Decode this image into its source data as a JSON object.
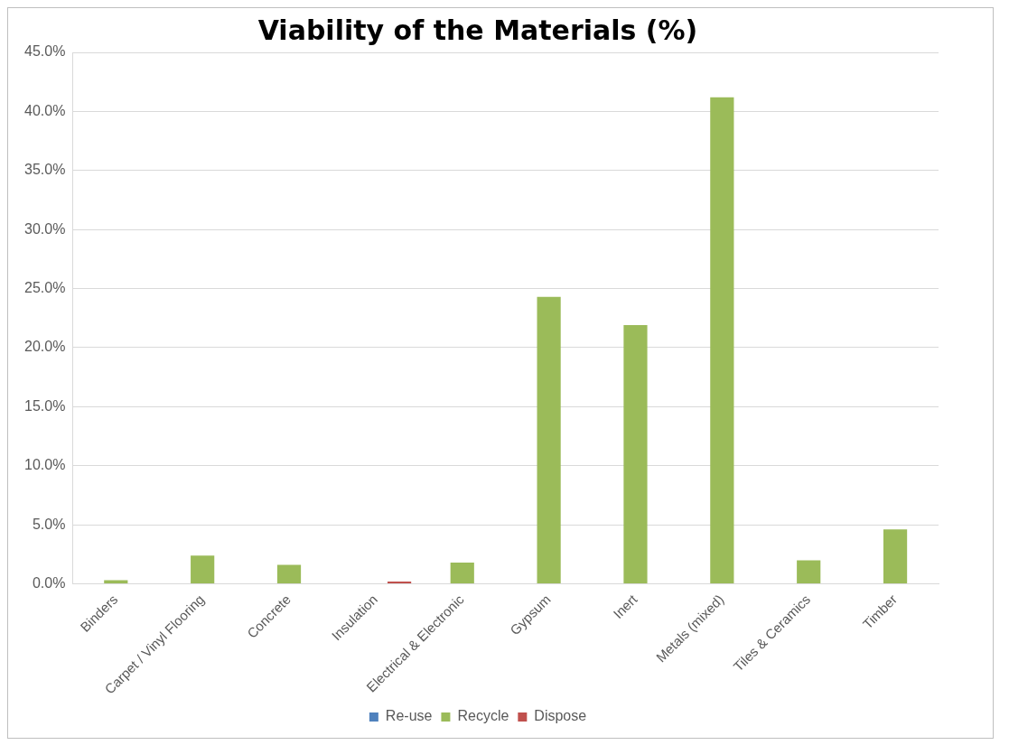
{
  "chart_data": {
    "type": "bar",
    "title": "Viability of the Materials (%)",
    "categories": [
      "Binders",
      "Carpet / Vinyl Flooring",
      "Concrete",
      "Insulation",
      "Electrical & Electronic",
      "Gypsum",
      "Inert",
      "Metals (mixed)",
      "Tiles & Ceramics",
      "Timber"
    ],
    "series": [
      {
        "name": "Re-use",
        "color": "#4f81bd",
        "values": [
          0,
          0,
          0,
          0,
          0,
          0,
          0,
          0,
          0,
          0
        ]
      },
      {
        "name": "Recycle",
        "color": "#9bbb59",
        "values": [
          0.3,
          2.4,
          1.6,
          0,
          1.8,
          24.3,
          21.9,
          41.2,
          2.0,
          4.6
        ]
      },
      {
        "name": "Dispose",
        "color": "#c0504d",
        "values": [
          0,
          0,
          0,
          0.2,
          0,
          0,
          0,
          0,
          0,
          0
        ]
      }
    ],
    "ylim": [
      0,
      45
    ],
    "yticks": [
      {
        "value": 0,
        "label": "0.0%"
      },
      {
        "value": 5,
        "label": "5.0%"
      },
      {
        "value": 10,
        "label": "10.0%"
      },
      {
        "value": 15,
        "label": "15.0%"
      },
      {
        "value": 20,
        "label": "20.0%"
      },
      {
        "value": 25,
        "label": "25.0%"
      },
      {
        "value": 30,
        "label": "30.0%"
      },
      {
        "value": 35,
        "label": "35.0%"
      },
      {
        "value": 40,
        "label": "40.0%"
      },
      {
        "value": 45,
        "label": "45.0%"
      }
    ],
    "grid": "y",
    "legend": "bottom"
  }
}
